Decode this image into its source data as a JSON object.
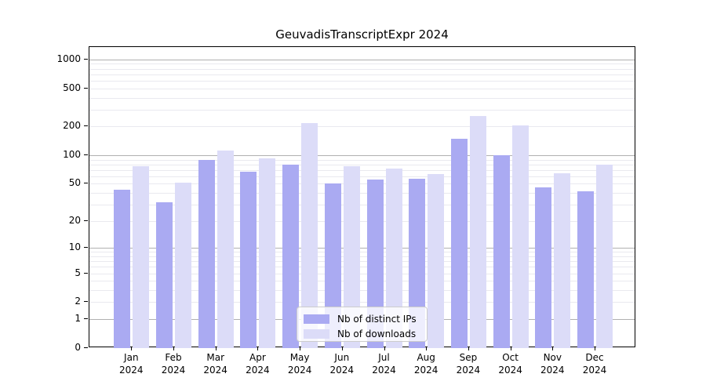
{
  "chart_data": {
    "type": "bar",
    "title": "GeuvadisTranscriptExpr 2024",
    "categories": [
      "Jan",
      "Feb",
      "Mar",
      "Apr",
      "May",
      "Jun",
      "Jul",
      "Aug",
      "Sep",
      "Oct",
      "Nov",
      "Dec"
    ],
    "year": "2024",
    "series": [
      {
        "name": "Nb of distinct IPs",
        "color": "#aaaaf2",
        "values": [
          43,
          32,
          90,
          67,
          80,
          50,
          56,
          57,
          150,
          100,
          46,
          42
        ]
      },
      {
        "name": "Nb of downloads",
        "color": "#dcdcf8",
        "values": [
          77,
          51,
          113,
          93,
          217,
          77,
          73,
          64,
          256,
          207,
          65,
          79
        ]
      }
    ],
    "yscale": "log1p",
    "yticks": [
      0,
      1,
      2,
      5,
      10,
      20,
      50,
      100,
      200,
      500,
      1000
    ],
    "ylim": [
      0,
      1350
    ],
    "grid": true,
    "grid_major_values": [
      1,
      10,
      100,
      1000
    ],
    "grid_minor_values": [
      2,
      3,
      4,
      5,
      6,
      7,
      8,
      9,
      20,
      30,
      40,
      50,
      60,
      70,
      80,
      90,
      200,
      300,
      400,
      500,
      600,
      700,
      800,
      900
    ],
    "legend_position": "lower-center-inside",
    "colors": {
      "grid_major": "#b0b0b0",
      "grid_minor": "#e9e9ef",
      "axis": "#000000",
      "text": "#000000"
    }
  }
}
